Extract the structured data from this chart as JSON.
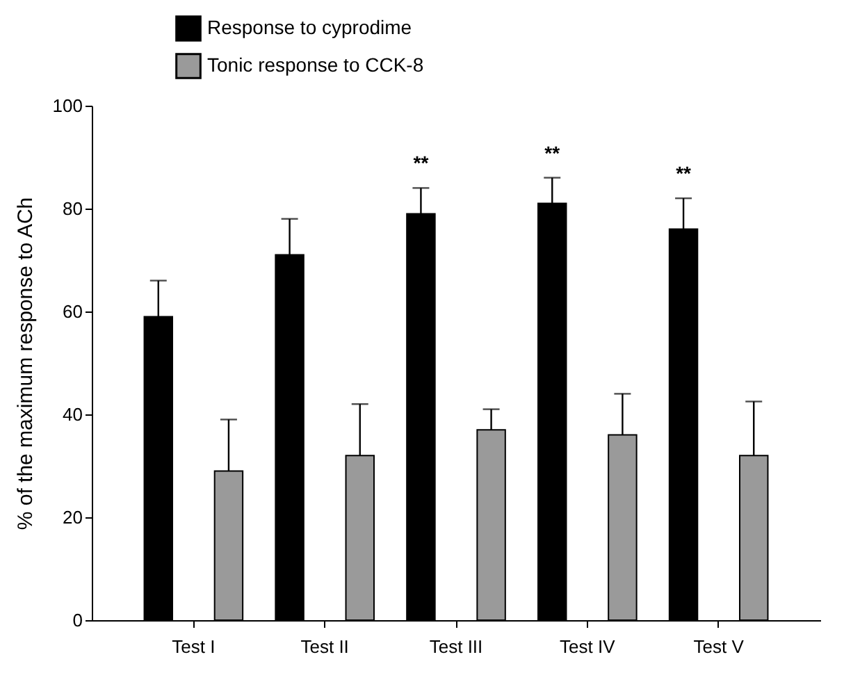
{
  "chart_data": {
    "type": "bar",
    "ylabel": "% of the maximum response to ACh",
    "categories": [
      "Test I",
      "Test II",
      "Test III",
      "Test IV",
      "Test V"
    ],
    "series": [
      {
        "name": "Response to cyprodime",
        "color": "#000000",
        "values": [
          59,
          71,
          79,
          81,
          76
        ],
        "errors": [
          [
            59,
            66
          ],
          [
            71,
            78
          ],
          [
            79,
            84
          ],
          [
            81,
            86
          ],
          [
            76,
            82
          ]
        ]
      },
      {
        "name": "Tonic response to CCK-8",
        "color": "#9a9a9a",
        "values": [
          29,
          32,
          37,
          36,
          32
        ],
        "errors": [
          [
            29,
            39
          ],
          [
            32,
            42
          ],
          [
            37,
            41
          ],
          [
            36,
            44
          ],
          [
            32,
            42.5
          ]
        ]
      }
    ],
    "annotations": [
      "**",
      "**",
      "**"
    ],
    "ylim": [
      0,
      100
    ],
    "yticks": [
      0,
      20,
      40,
      60,
      80,
      100
    ],
    "grid": false,
    "legend": "top left"
  }
}
